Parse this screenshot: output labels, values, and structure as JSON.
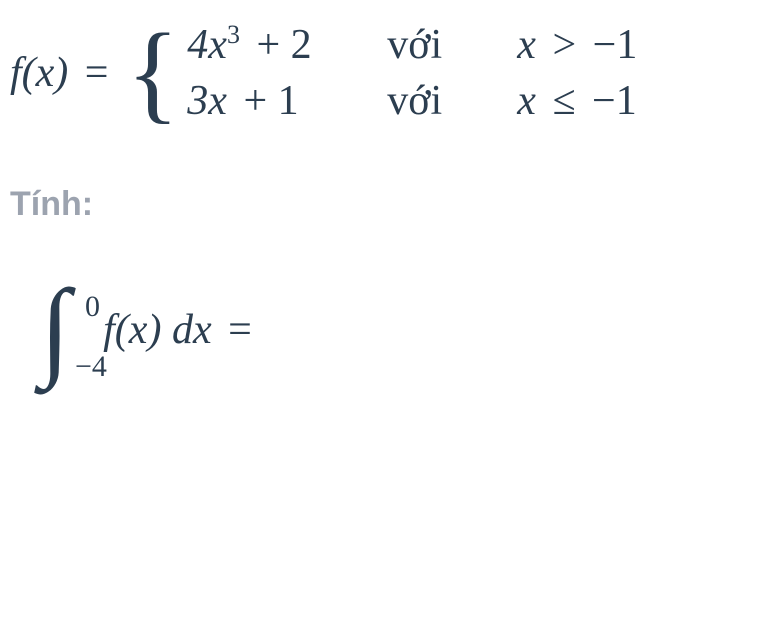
{
  "colors": {
    "math_text": "#2c3e50",
    "label_text": "#9ca3af",
    "background": "#ffffff"
  },
  "typography": {
    "math_fontsize": 42,
    "label_fontsize": 34,
    "superscript_fontsize": 26,
    "brace_fontsize": 110,
    "integral_fontsize": 110,
    "bounds_fontsize": 30
  },
  "piecewise": {
    "function_name": "f(x)",
    "equals": " = ",
    "cases": [
      {
        "expression_base": "4x",
        "expression_exponent": "3",
        "expression_rest": " + 2",
        "with_label": "với",
        "condition_var": "x",
        "condition_op": " > ",
        "condition_val": "−1"
      },
      {
        "expression_base": "3x",
        "expression_exponent": "",
        "expression_rest": " + 1",
        "with_label": "với",
        "condition_var": "x",
        "condition_op": " ≤ ",
        "condition_val": "−1"
      }
    ]
  },
  "compute_label": "Tính:",
  "integral": {
    "upper_bound": "0",
    "lower_bound": "−4",
    "integrand_func": "f(x)",
    "differential": " dx",
    "equals": " = "
  }
}
